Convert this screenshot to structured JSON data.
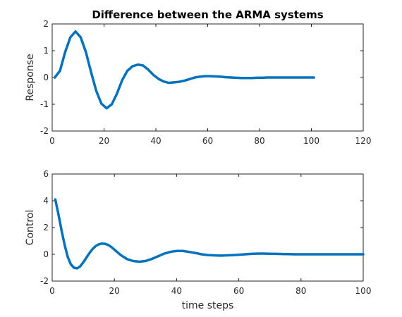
{
  "chart_data": [
    {
      "type": "line",
      "title": "Difference between the ARMA systems",
      "xlabel": "",
      "ylabel": "Response",
      "xlim": [
        0,
        120
      ],
      "ylim": [
        -2,
        2
      ],
      "xticks": [
        0,
        20,
        40,
        60,
        80,
        100,
        120
      ],
      "yticks": [
        -2,
        -1,
        0,
        1,
        2
      ],
      "grid": false,
      "series": [
        {
          "color": "#0072BD",
          "x": [
            1,
            3,
            5,
            7,
            9,
            11,
            13,
            15,
            17,
            19,
            21,
            23,
            25,
            27,
            29,
            31,
            33,
            35,
            37,
            39,
            41,
            43,
            45,
            47,
            49,
            51,
            53,
            55,
            57,
            59,
            61,
            63,
            65,
            67,
            69,
            71,
            73,
            75,
            77,
            79,
            81,
            83,
            85,
            87,
            89,
            91,
            93,
            95,
            97,
            99,
            101
          ],
          "y": [
            0.0,
            0.25,
            0.95,
            1.5,
            1.72,
            1.5,
            0.95,
            0.2,
            -0.5,
            -0.98,
            -1.15,
            -1.0,
            -0.6,
            -0.1,
            0.25,
            0.42,
            0.48,
            0.45,
            0.3,
            0.1,
            -0.05,
            -0.15,
            -0.2,
            -0.18,
            -0.16,
            -0.12,
            -0.06,
            0.0,
            0.03,
            0.05,
            0.05,
            0.04,
            0.03,
            0.01,
            0.0,
            -0.01,
            -0.02,
            -0.02,
            -0.02,
            -0.01,
            -0.01,
            0.0,
            0.0,
            0.0,
            0.0,
            0.0,
            0.0,
            0.0,
            0.0,
            0.0,
            0.0
          ]
        }
      ]
    },
    {
      "type": "line",
      "title": "",
      "xlabel": "time steps",
      "ylabel": "Control",
      "xlim": [
        0,
        100
      ],
      "ylim": [
        -2,
        6
      ],
      "xticks": [
        0,
        20,
        40,
        60,
        80,
        100
      ],
      "yticks": [
        -2,
        0,
        2,
        4,
        6
      ],
      "grid": false,
      "series": [
        {
          "color": "#0072BD",
          "x": [
            1,
            2,
            3,
            4,
            5,
            6,
            7,
            8,
            9,
            10,
            11,
            12,
            13,
            14,
            15,
            16,
            17,
            18,
            19,
            20,
            22,
            24,
            26,
            28,
            30,
            32,
            34,
            36,
            38,
            40,
            42,
            44,
            46,
            48,
            50,
            52,
            54,
            56,
            58,
            60,
            62,
            64,
            66,
            68,
            70,
            72,
            74,
            76,
            78,
            80,
            85,
            90,
            95,
            100
          ],
          "y": [
            4.1,
            3.0,
            1.8,
            0.7,
            -0.2,
            -0.75,
            -1.0,
            -1.05,
            -0.9,
            -0.6,
            -0.25,
            0.1,
            0.4,
            0.62,
            0.75,
            0.8,
            0.78,
            0.7,
            0.55,
            0.35,
            -0.05,
            -0.35,
            -0.5,
            -0.55,
            -0.5,
            -0.35,
            -0.15,
            0.05,
            0.18,
            0.25,
            0.25,
            0.18,
            0.1,
            0.0,
            -0.05,
            -0.08,
            -0.1,
            -0.08,
            -0.06,
            -0.03,
            0.0,
            0.03,
            0.05,
            0.05,
            0.04,
            0.03,
            0.02,
            0.01,
            0.0,
            0.0,
            0.0,
            0.0,
            0.0,
            0.0
          ]
        }
      ]
    }
  ]
}
